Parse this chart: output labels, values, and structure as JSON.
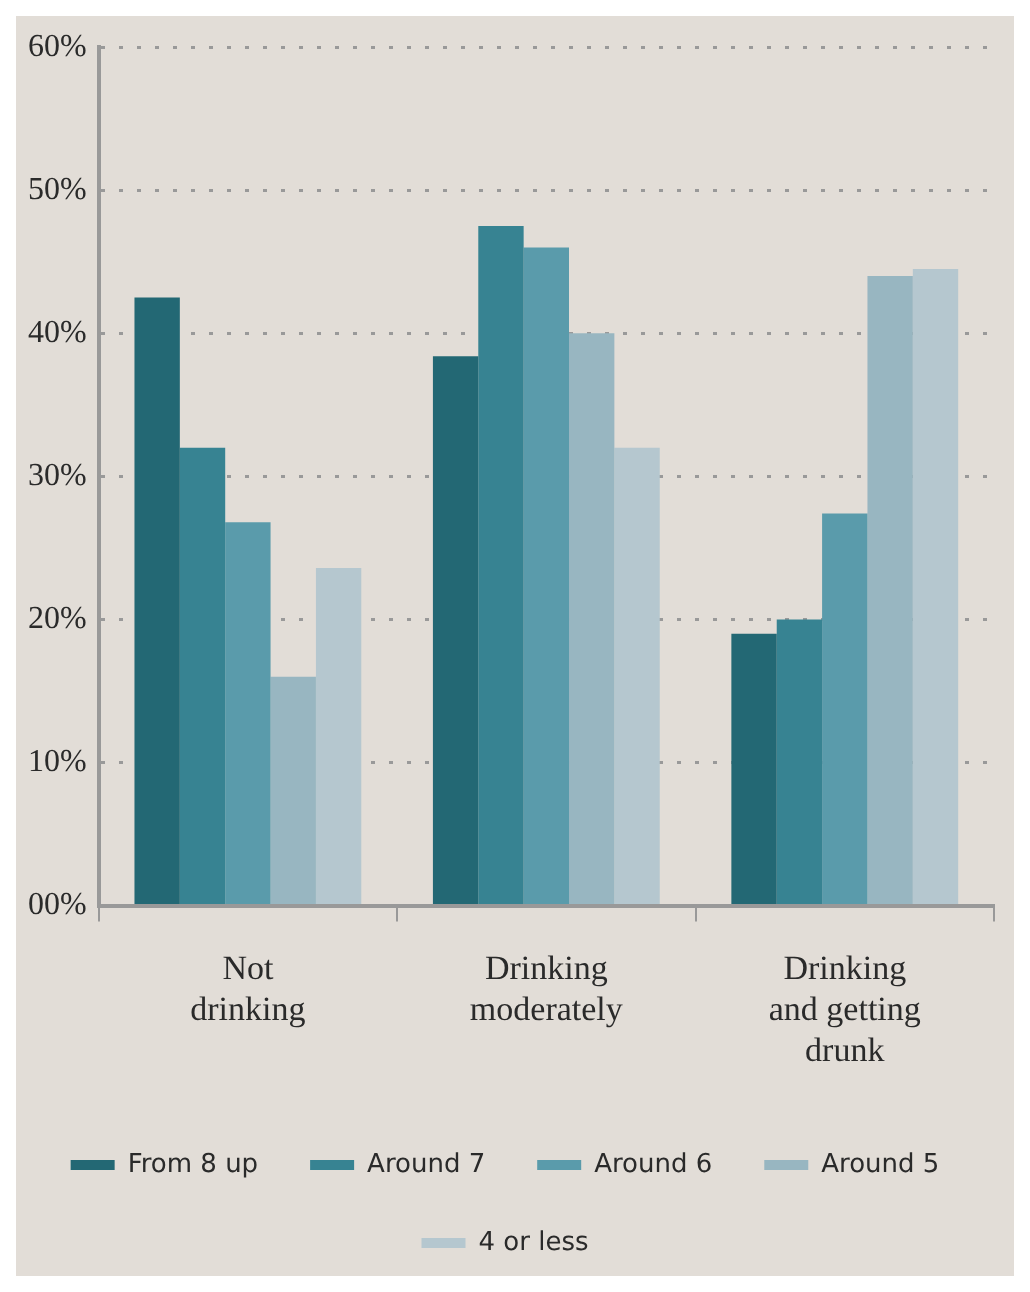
{
  "chart_data": {
    "type": "bar",
    "categories": [
      "Not drinking",
      "Drinking moderately",
      "Drinking and getting drunk"
    ],
    "series": [
      {
        "name": "From 8 up",
        "color": "#236874",
        "values": [
          42.5,
          38.4,
          19
        ]
      },
      {
        "name": "Around 7",
        "color": "#378392",
        "values": [
          32,
          47.5,
          20
        ]
      },
      {
        "name": "Around 6",
        "color": "#5a9bab",
        "values": [
          26.8,
          46,
          27.4
        ]
      },
      {
        "name": "Around 5",
        "color": "#98b6c1",
        "values": [
          16,
          40,
          44
        ]
      },
      {
        "name": "4 or less",
        "color": "#b5c7cf",
        "values": [
          23.6,
          32,
          44.5
        ]
      }
    ],
    "ylim": [
      0,
      60
    ],
    "yticks": [
      {
        "value": 0,
        "label": "00%"
      },
      {
        "value": 10,
        "label": "10%"
      },
      {
        "value": 20,
        "label": "20%"
      },
      {
        "value": 30,
        "label": "30%"
      },
      {
        "value": 40,
        "label": "40%"
      },
      {
        "value": 50,
        "label": "50%"
      },
      {
        "value": 60,
        "label": "60%"
      }
    ],
    "grid": "y",
    "legend": "bottom"
  }
}
